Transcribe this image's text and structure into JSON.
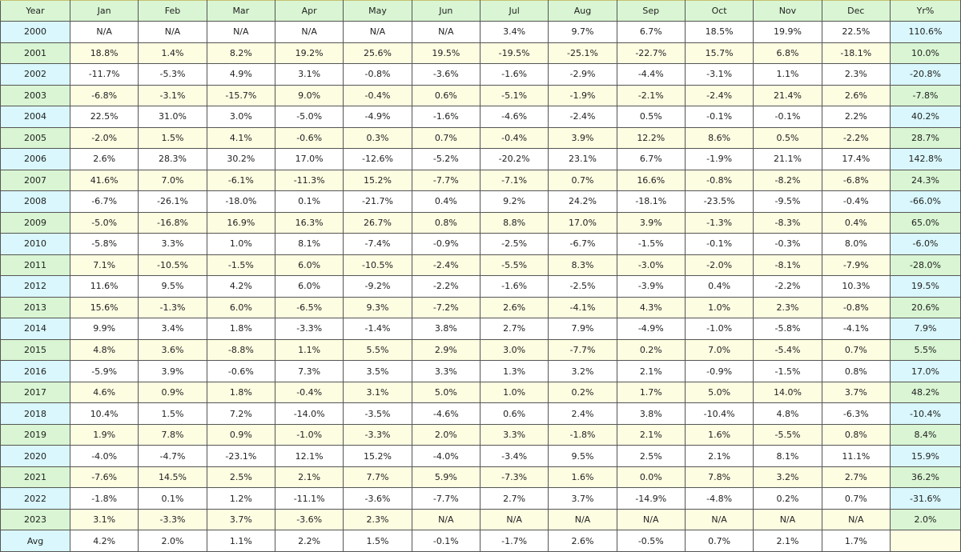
{
  "colors": {
    "header": "#d9f5d3",
    "cyan": "#d9f7fc",
    "green": "#d9f5d3",
    "yellow": "#fdfde2"
  },
  "headers": [
    "Year",
    "Jan",
    "Feb",
    "Mar",
    "Apr",
    "May",
    "Jun",
    "Jul",
    "Aug",
    "Sep",
    "Oct",
    "Nov",
    "Dec",
    "Yr%"
  ],
  "rows": [
    [
      "2000",
      "N/A",
      "N/A",
      "N/A",
      "N/A",
      "N/A",
      "N/A",
      "3.4%",
      "9.7%",
      "6.7%",
      "18.5%",
      "19.9%",
      "22.5%",
      "110.6%"
    ],
    [
      "2001",
      "18.8%",
      "1.4%",
      "8.2%",
      "19.2%",
      "25.6%",
      "19.5%",
      "-19.5%",
      "-25.1%",
      "-22.7%",
      "15.7%",
      "6.8%",
      "-18.1%",
      "10.0%"
    ],
    [
      "2002",
      "-11.7%",
      "-5.3%",
      "4.9%",
      "3.1%",
      "-0.8%",
      "-3.6%",
      "-1.6%",
      "-2.9%",
      "-4.4%",
      "-3.1%",
      "1.1%",
      "2.3%",
      "-20.8%"
    ],
    [
      "2003",
      "-6.8%",
      "-3.1%",
      "-15.7%",
      "9.0%",
      "-0.4%",
      "0.6%",
      "-5.1%",
      "-1.9%",
      "-2.1%",
      "-2.4%",
      "21.4%",
      "2.6%",
      "-7.8%"
    ],
    [
      "2004",
      "22.5%",
      "31.0%",
      "3.0%",
      "-5.0%",
      "-4.9%",
      "-1.6%",
      "-4.6%",
      "-2.4%",
      "0.5%",
      "-0.1%",
      "-0.1%",
      "2.2%",
      "40.2%"
    ],
    [
      "2005",
      "-2.0%",
      "1.5%",
      "4.1%",
      "-0.6%",
      "0.3%",
      "0.7%",
      "-0.4%",
      "3.9%",
      "12.2%",
      "8.6%",
      "0.5%",
      "-2.2%",
      "28.7%"
    ],
    [
      "2006",
      "2.6%",
      "28.3%",
      "30.2%",
      "17.0%",
      "-12.6%",
      "-5.2%",
      "-20.2%",
      "23.1%",
      "6.7%",
      "-1.9%",
      "21.1%",
      "17.4%",
      "142.8%"
    ],
    [
      "2007",
      "41.6%",
      "7.0%",
      "-6.1%",
      "-11.3%",
      "15.2%",
      "-7.7%",
      "-7.1%",
      "0.7%",
      "16.6%",
      "-0.8%",
      "-8.2%",
      "-6.8%",
      "24.3%"
    ],
    [
      "2008",
      "-6.7%",
      "-26.1%",
      "-18.0%",
      "0.1%",
      "-21.7%",
      "0.4%",
      "9.2%",
      "24.2%",
      "-18.1%",
      "-23.5%",
      "-9.5%",
      "-0.4%",
      "-66.0%"
    ],
    [
      "2009",
      "-5.0%",
      "-16.8%",
      "16.9%",
      "16.3%",
      "26.7%",
      "0.8%",
      "8.8%",
      "17.0%",
      "3.9%",
      "-1.3%",
      "-8.3%",
      "0.4%",
      "65.0%"
    ],
    [
      "2010",
      "-5.8%",
      "3.3%",
      "1.0%",
      "8.1%",
      "-7.4%",
      "-0.9%",
      "-2.5%",
      "-6.7%",
      "-1.5%",
      "-0.1%",
      "-0.3%",
      "8.0%",
      "-6.0%"
    ],
    [
      "2011",
      "7.1%",
      "-10.5%",
      "-1.5%",
      "6.0%",
      "-10.5%",
      "-2.4%",
      "-5.5%",
      "8.3%",
      "-3.0%",
      "-2.0%",
      "-8.1%",
      "-7.9%",
      "-28.0%"
    ],
    [
      "2012",
      "11.6%",
      "9.5%",
      "4.2%",
      "6.0%",
      "-9.2%",
      "-2.2%",
      "-1.6%",
      "-2.5%",
      "-3.9%",
      "0.4%",
      "-2.2%",
      "10.3%",
      "19.5%"
    ],
    [
      "2013",
      "15.6%",
      "-1.3%",
      "6.0%",
      "-6.5%",
      "9.3%",
      "-7.2%",
      "2.6%",
      "-4.1%",
      "4.3%",
      "1.0%",
      "2.3%",
      "-0.8%",
      "20.6%"
    ],
    [
      "2014",
      "9.9%",
      "3.4%",
      "1.8%",
      "-3.3%",
      "-1.4%",
      "3.8%",
      "2.7%",
      "7.9%",
      "-4.9%",
      "-1.0%",
      "-5.8%",
      "-4.1%",
      "7.9%"
    ],
    [
      "2015",
      "4.8%",
      "3.6%",
      "-8.8%",
      "1.1%",
      "5.5%",
      "2.9%",
      "3.0%",
      "-7.7%",
      "0.2%",
      "7.0%",
      "-5.4%",
      "0.7%",
      "5.5%"
    ],
    [
      "2016",
      "-5.9%",
      "3.9%",
      "-0.6%",
      "7.3%",
      "3.5%",
      "3.3%",
      "1.3%",
      "3.2%",
      "2.1%",
      "-0.9%",
      "-1.5%",
      "0.8%",
      "17.0%"
    ],
    [
      "2017",
      "4.6%",
      "0.9%",
      "1.8%",
      "-0.4%",
      "3.1%",
      "5.0%",
      "1.0%",
      "0.2%",
      "1.7%",
      "5.0%",
      "14.0%",
      "3.7%",
      "48.2%"
    ],
    [
      "2018",
      "10.4%",
      "1.5%",
      "7.2%",
      "-14.0%",
      "-3.5%",
      "-4.6%",
      "0.6%",
      "2.4%",
      "3.8%",
      "-10.4%",
      "4.8%",
      "-6.3%",
      "-10.4%"
    ],
    [
      "2019",
      "1.9%",
      "7.8%",
      "0.9%",
      "-1.0%",
      "-3.3%",
      "2.0%",
      "3.3%",
      "-1.8%",
      "2.1%",
      "1.6%",
      "-5.5%",
      "0.8%",
      "8.4%"
    ],
    [
      "2020",
      "-4.0%",
      "-4.7%",
      "-23.1%",
      "12.1%",
      "15.2%",
      "-4.0%",
      "-3.4%",
      "9.5%",
      "2.5%",
      "2.1%",
      "8.1%",
      "11.1%",
      "15.9%"
    ],
    [
      "2021",
      "-7.6%",
      "14.5%",
      "2.5%",
      "2.1%",
      "7.7%",
      "5.9%",
      "-7.3%",
      "1.6%",
      "0.0%",
      "7.8%",
      "3.2%",
      "2.7%",
      "36.2%"
    ],
    [
      "2022",
      "-1.8%",
      "0.1%",
      "1.2%",
      "-11.1%",
      "-3.6%",
      "-7.7%",
      "2.7%",
      "3.7%",
      "-14.9%",
      "-4.8%",
      "0.2%",
      "0.7%",
      "-31.6%"
    ],
    [
      "2023",
      "3.1%",
      "-3.3%",
      "3.7%",
      "-3.6%",
      "2.3%",
      "N/A",
      "N/A",
      "N/A",
      "N/A",
      "N/A",
      "N/A",
      "N/A",
      "2.0%"
    ],
    [
      "Avg",
      "4.2%",
      "2.0%",
      "1.1%",
      "2.2%",
      "1.5%",
      "-0.1%",
      "-1.7%",
      "2.6%",
      "-0.5%",
      "0.7%",
      "2.1%",
      "1.7%",
      ""
    ]
  ]
}
